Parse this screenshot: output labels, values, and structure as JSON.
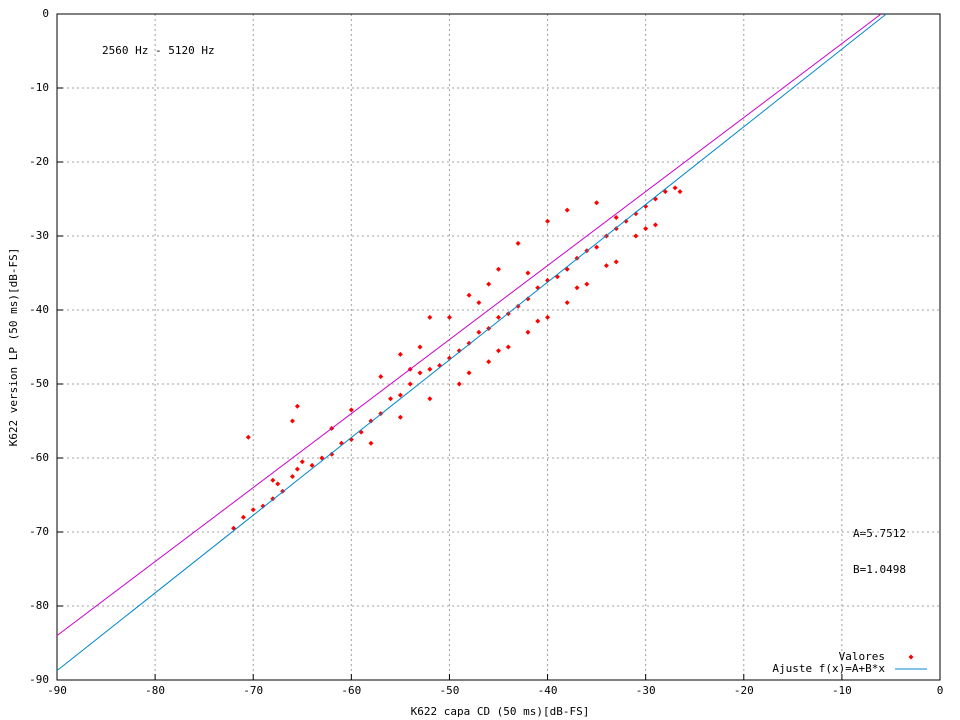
{
  "chart_data": {
    "type": "scatter",
    "x_label": "K622 capa CD (50 ms)[dB-FS]",
    "y_label": "K622 version LP (50 ms)[dB-FS]",
    "annotations": [
      "2560 Hz - 5120 Hz",
      "A=5.7512",
      "B=1.0498"
    ],
    "xlim": [
      -90,
      0
    ],
    "ylim": [
      -90,
      0
    ],
    "xticks": [
      -90,
      -80,
      -70,
      -60,
      -50,
      -40,
      -30,
      -20,
      -10,
      0
    ],
    "yticks": [
      -90,
      -80,
      -70,
      -60,
      -50,
      -40,
      -30,
      -20,
      -10,
      0
    ],
    "grid": true,
    "legend": "bottom-right",
    "series": [
      {
        "name": "Valores",
        "color": "#ff0000",
        "type": "scatter",
        "x": [
          -72,
          -71,
          -70.5,
          -70,
          -69,
          -68,
          -67.5,
          -67,
          -66,
          -65.5,
          -65,
          -64,
          -63,
          -62,
          -61,
          -60,
          -59,
          -58,
          -57,
          -56,
          -55,
          -54,
          -53,
          -52,
          -51,
          -50,
          -49,
          -48,
          -47,
          -46,
          -45,
          -44,
          -43,
          -42,
          -41,
          -40,
          -39,
          -38,
          -37,
          -36,
          -35,
          -34,
          -33,
          -32,
          -31,
          -30,
          -29,
          -28,
          -27,
          -26.5,
          -65.5,
          -66,
          -60,
          -57,
          -55,
          -52,
          -50,
          -48,
          -46,
          -45,
          -43,
          -40,
          -38,
          -35,
          -33,
          -58,
          -55,
          -52,
          -49,
          -46,
          -44,
          -42,
          -40,
          -38,
          -36,
          -34,
          -31,
          -29,
          -53,
          -48,
          -45,
          -41,
          -37,
          -33,
          -30,
          -42,
          -47,
          -54,
          -62,
          -68
        ],
        "values": [
          -69.5,
          -68,
          -57.2,
          -67,
          -66.5,
          -65.5,
          -63.5,
          -64.5,
          -62.5,
          -61.5,
          -60.5,
          -61,
          -60,
          -59.5,
          -58,
          -57.5,
          -56.5,
          -55,
          -54,
          -52,
          -51.5,
          -50,
          -48.5,
          -48,
          -47.5,
          -46.5,
          -45.5,
          -44.5,
          -43,
          -42.5,
          -41,
          -40.5,
          -39.5,
          -38.5,
          -37,
          -36,
          -35.5,
          -34.5,
          -33,
          -32,
          -31.5,
          -30,
          -29,
          -28,
          -27,
          -26,
          -25,
          -24,
          -23.5,
          -24,
          -53,
          -55,
          -53.5,
          -49,
          -46,
          -41,
          -41,
          -38,
          -36.5,
          -34.5,
          -31,
          -28,
          -26.5,
          -25.5,
          -27.5,
          -58,
          -54.5,
          -52,
          -50,
          -47,
          -45,
          -43,
          -41,
          -39,
          -36.5,
          -34,
          -30,
          -28.5,
          -45,
          -48.5,
          -45.5,
          -41.5,
          -37,
          -33.5,
          -29,
          -35,
          -39,
          -48,
          -56,
          -63
        ]
      },
      {
        "name": "Ajuste f(x)=A+B*x",
        "color": "#0088cc",
        "type": "line",
        "x": [
          -90,
          -5.48
        ],
        "values": [
          -88.73,
          0
        ]
      },
      {
        "color": "#cc00cc",
        "type": "line",
        "x": [
          -90,
          -6
        ],
        "values": [
          -84,
          0
        ]
      }
    ]
  }
}
